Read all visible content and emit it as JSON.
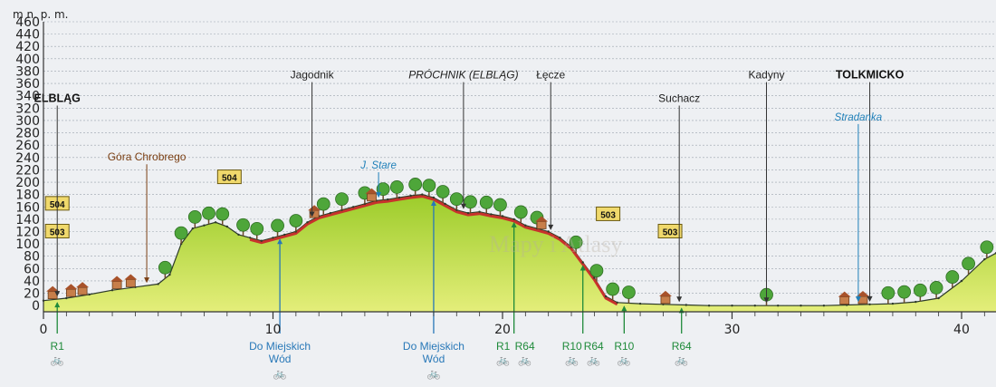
{
  "chart_data": {
    "type": "area",
    "unit_label": "m n. p. m.",
    "ylim": [
      -10,
      460
    ],
    "xlim": [
      0,
      41.5
    ],
    "y_ticks": [
      0,
      20,
      40,
      60,
      80,
      100,
      120,
      140,
      160,
      180,
      200,
      220,
      240,
      260,
      280,
      300,
      320,
      340,
      360,
      380,
      400,
      420,
      440,
      460
    ],
    "x_ticks": [
      0,
      10,
      20,
      30,
      40
    ],
    "grid": true,
    "series": [
      {
        "x": [
          0,
          1,
          2,
          3,
          4,
          5,
          5.5,
          6,
          6.5,
          7,
          7.5,
          8,
          8.5,
          9,
          9.5,
          10,
          10.5,
          11,
          11.5,
          12,
          12.5,
          13,
          13.5,
          14,
          14.5,
          15,
          15.5,
          16,
          16.5,
          17,
          17.5,
          18,
          18.5,
          19,
          19.5,
          20,
          20.5,
          21,
          21.5,
          22,
          22.5,
          23,
          23.5,
          24,
          24.5,
          25,
          26,
          27,
          28,
          29,
          30,
          31,
          32,
          33,
          34,
          35,
          36,
          37,
          38,
          39,
          40,
          41,
          41.5
        ],
        "values": [
          8,
          12,
          18,
          25,
          30,
          35,
          50,
          100,
          125,
          130,
          135,
          128,
          115,
          110,
          105,
          110,
          115,
          120,
          135,
          145,
          150,
          155,
          160,
          165,
          170,
          172,
          175,
          178,
          180,
          175,
          165,
          155,
          150,
          152,
          148,
          145,
          140,
          130,
          125,
          120,
          110,
          95,
          70,
          45,
          15,
          5,
          3,
          2,
          1,
          0,
          0,
          0,
          0,
          0,
          0,
          1,
          2,
          3,
          6,
          12,
          40,
          75,
          85
        ]
      }
    ],
    "badges": [
      {
        "x": 0.6,
        "y": 120,
        "label": "503"
      },
      {
        "x": 0.6,
        "y": 165,
        "label": "504"
      },
      {
        "x": 8.1,
        "y": 208,
        "label": "504"
      },
      {
        "x": 24.6,
        "y": 148,
        "label": "503"
      },
      {
        "x": 27.3,
        "y": 120,
        "label": "503"
      }
    ],
    "places": [
      {
        "name": "ELBLĄG",
        "x": 0.6,
        "style": "bold",
        "label_y": 330
      },
      {
        "name": "Góra Chrobrego",
        "x": 4.5,
        "style": "brown",
        "label_y": 235
      },
      {
        "name": "Jagodnik",
        "x": 11.7,
        "style": "normal",
        "label_y": 368
      },
      {
        "name": "J. Stare",
        "x": 14.6,
        "style": "water",
        "label_y": 222
      },
      {
        "name": "PRÓCHNIK (ELBLĄG)",
        "x": 18.3,
        "style": "italic",
        "label_y": 368
      },
      {
        "name": "Łęcze",
        "x": 22.1,
        "style": "normal",
        "label_y": 368
      },
      {
        "name": "Suchacz",
        "x": 27.7,
        "style": "normal",
        "label_y": 330
      },
      {
        "name": "Kadyny",
        "x": 31.5,
        "style": "normal",
        "label_y": 368
      },
      {
        "name": "TOLKMICKO",
        "x": 36.0,
        "style": "bold",
        "label_y": 368
      },
      {
        "name": "Stradanka",
        "x": 35.5,
        "style": "water",
        "label_y": 300
      }
    ],
    "routes": [
      {
        "x": 0.6,
        "labels": [
          "R1"
        ],
        "color": "green"
      },
      {
        "x": 10.3,
        "labels": [
          "Do Miejskich",
          "Wód"
        ],
        "color": "blue"
      },
      {
        "x": 17.0,
        "labels": [
          "Do Miejskich",
          "Wód"
        ],
        "color": "blue"
      },
      {
        "x": 20.5,
        "labels": [
          "R1",
          "R64"
        ],
        "color": "green"
      },
      {
        "x": 23.5,
        "labels": [
          "R10",
          "R64"
        ],
        "color": "green"
      },
      {
        "x": 25.3,
        "labels": [
          "R10"
        ],
        "color": "green"
      },
      {
        "x": 27.8,
        "labels": [
          "R64"
        ],
        "color": "green"
      }
    ]
  },
  "watermark": "Mapy i Atlasy",
  "colors": {
    "fill_top": "#9ccc2a",
    "fill_bottom": "#e4ee7a",
    "route": "#c8322c",
    "grid": "#9aa3ad",
    "green": "#1f8a3a",
    "blue": "#2878b8",
    "tree": "#4ea63a",
    "house": "#c77e4a",
    "badge": "#f0d96c"
  }
}
